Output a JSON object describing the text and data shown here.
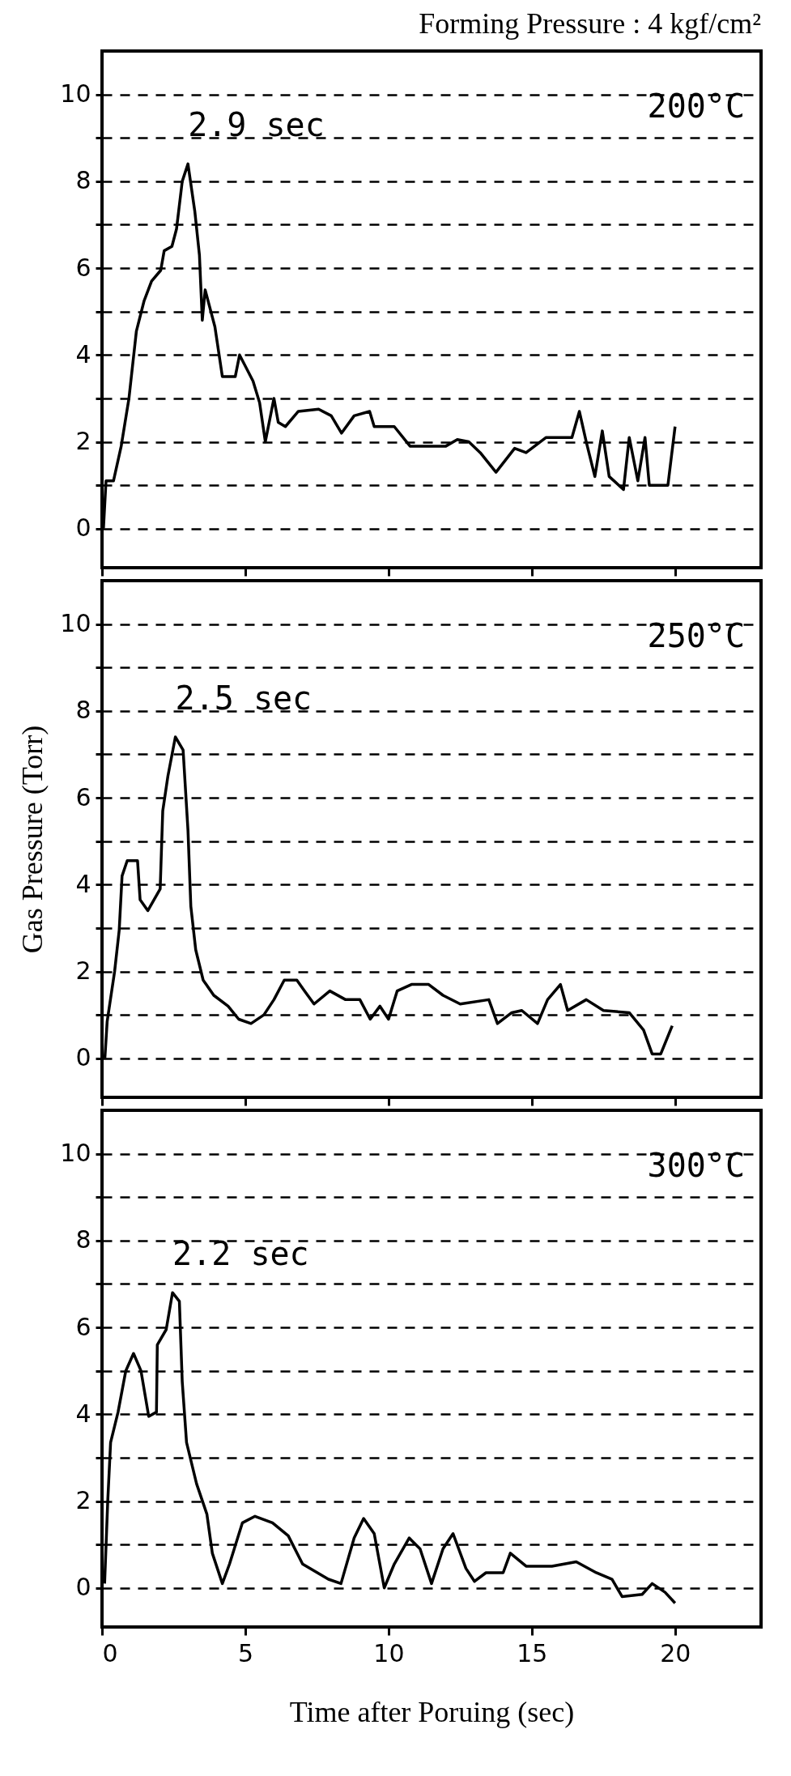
{
  "chart_data": [
    {
      "type": "line",
      "title": "Forming Pressure : 4 kgf/cm²",
      "annotations": [
        {
          "text": "2.9 sec",
          "x": 3.0,
          "y": 8.4
        },
        "200°C"
      ],
      "xlim": [
        0,
        23
      ],
      "xticks": [
        0,
        5,
        10,
        15,
        20
      ],
      "ylim": [
        -0.9,
        11
      ],
      "yticks": [
        0,
        {
          "value": 1,
          "label": null
        },
        2,
        {
          "value": 3,
          "label": null
        },
        4,
        {
          "value": 5,
          "label": null
        },
        6,
        {
          "value": 7,
          "label": null
        },
        8,
        {
          "value": 9,
          "label": null
        },
        10
      ],
      "grid": "y",
      "tick_labels": "y",
      "line_style": "solid",
      "marker": "none",
      "series": [
        {
          "color": "#000000",
          "x": [
            0.05,
            0.14,
            0.4,
            0.67,
            0.94,
            1.2,
            1.47,
            1.73,
            2.05,
            2.17,
            2.44,
            2.6,
            2.8,
            3.0,
            3.24,
            3.4,
            3.5,
            3.6,
            3.94,
            4.2,
            4.65,
            4.8,
            5.27,
            5.5,
            5.7,
            6.0,
            6.15,
            6.4,
            6.85,
            7.56,
            8.0,
            8.36,
            8.8,
            9.34,
            9.5,
            10.2,
            10.75,
            12.0,
            12.4,
            12.8,
            13.2,
            13.75,
            14.4,
            14.8,
            15.5,
            16.4,
            16.66,
            16.9,
            17.2,
            17.46,
            17.7,
            18.2,
            18.4,
            18.7,
            18.95,
            19.1,
            19.75,
            20.0
          ],
          "values": [
            0.0,
            1.1,
            1.1,
            1.9,
            3.0,
            4.55,
            5.25,
            5.7,
            5.95,
            6.4,
            6.5,
            6.9,
            8.0,
            8.4,
            7.3,
            6.3,
            4.8,
            5.5,
            4.65,
            3.5,
            3.5,
            4.0,
            3.4,
            2.9,
            2.0,
            3.0,
            2.45,
            2.35,
            2.7,
            2.75,
            2.6,
            2.2,
            2.6,
            2.7,
            2.35,
            2.35,
            1.9,
            1.9,
            2.05,
            2.0,
            1.75,
            1.3,
            1.85,
            1.75,
            2.1,
            2.1,
            2.7,
            2.0,
            1.2,
            2.25,
            1.2,
            0.9,
            2.1,
            1.1,
            2.1,
            1.0,
            1.0,
            2.35
          ]
        }
      ]
    },
    {
      "type": "line",
      "ylabel": "Gas Pressure (Torr)",
      "annotations": [
        {
          "text": "2.5 sec",
          "x": 2.56,
          "y": 7.4
        },
        "250°C"
      ],
      "xlim": [
        0,
        23
      ],
      "xticks": [
        0,
        5,
        10,
        15,
        20
      ],
      "ylim": [
        -0.9,
        11
      ],
      "yticks": [
        0,
        {
          "value": 1,
          "label": null
        },
        2,
        {
          "value": 3,
          "label": null
        },
        4,
        {
          "value": 5,
          "label": null
        },
        6,
        {
          "value": 7,
          "label": null
        },
        8,
        {
          "value": 9,
          "label": null
        },
        10
      ],
      "grid": "y",
      "tick_labels": "y",
      "line_style": "solid",
      "marker": "none",
      "series": [
        {
          "color": "#000000",
          "x": [
            0.1,
            0.18,
            0.44,
            0.6,
            0.7,
            0.88,
            1.24,
            1.33,
            1.6,
            2.03,
            2.12,
            2.3,
            2.56,
            2.83,
            3.0,
            3.1,
            3.27,
            3.53,
            3.9,
            4.4,
            4.77,
            5.2,
            5.65,
            6.0,
            6.36,
            6.8,
            7.07,
            7.4,
            7.95,
            8.5,
            9.0,
            9.36,
            9.7,
            10.0,
            10.3,
            10.8,
            11.4,
            11.9,
            12.5,
            13.5,
            13.8,
            14.3,
            14.65,
            15.2,
            15.55,
            16.0,
            16.25,
            16.9,
            17.5,
            18.4,
            18.9,
            19.2,
            19.5,
            19.9
          ],
          "values": [
            0.0,
            0.85,
            2.0,
            2.95,
            4.2,
            4.55,
            4.55,
            3.65,
            3.4,
            3.9,
            5.7,
            6.5,
            7.4,
            7.1,
            5.25,
            3.5,
            2.5,
            1.8,
            1.45,
            1.2,
            0.9,
            0.8,
            1.0,
            1.35,
            1.8,
            1.8,
            1.55,
            1.25,
            1.55,
            1.35,
            1.35,
            0.9,
            1.2,
            0.9,
            1.55,
            1.7,
            1.7,
            1.45,
            1.25,
            1.35,
            0.8,
            1.05,
            1.1,
            0.8,
            1.35,
            1.7,
            1.1,
            1.35,
            1.1,
            1.05,
            0.65,
            0.1,
            0.1,
            0.75
          ]
        }
      ]
    },
    {
      "type": "line",
      "xlabel": "Time after Poruing (sec)",
      "annotations": [
        {
          "text": "2.2 sec",
          "x": 2.46,
          "y": 6.8
        },
        "300°C"
      ],
      "xlim": [
        0,
        23
      ],
      "xticks": [
        0,
        5,
        10,
        15,
        20
      ],
      "ylim": [
        -0.9,
        11
      ],
      "yticks": [
        0,
        {
          "value": 1,
          "label": null
        },
        2,
        {
          "value": 3,
          "label": null
        },
        4,
        {
          "value": 5,
          "label": null
        },
        6,
        {
          "value": 7,
          "label": null
        },
        8,
        {
          "value": 9,
          "label": null
        },
        10
      ],
      "grid": "y",
      "line_style": "solid",
      "marker": "none",
      "series": [
        {
          "color": "#000000",
          "x": [
            0.09,
            0.2,
            0.3,
            0.56,
            0.83,
            1.1,
            1.36,
            1.63,
            1.9,
            1.93,
            2.24,
            2.46,
            2.7,
            2.8,
            2.95,
            3.3,
            3.66,
            3.85,
            4.2,
            4.45,
            4.9,
            5.34,
            5.95,
            6.5,
            7.0,
            7.9,
            8.34,
            8.8,
            9.13,
            9.5,
            9.85,
            10.2,
            10.72,
            11.1,
            11.5,
            11.9,
            12.25,
            12.7,
            13.0,
            13.4,
            14.0,
            14.25,
            14.8,
            15.7,
            16.55,
            17.25,
            17.8,
            18.15,
            18.85,
            19.2,
            19.65,
            20.0
          ],
          "values": [
            0.1,
            2.0,
            3.35,
            4.05,
            5.0,
            5.4,
            5.0,
            3.95,
            4.05,
            5.6,
            5.95,
            6.8,
            6.6,
            4.75,
            3.35,
            2.4,
            1.7,
            0.8,
            0.1,
            0.55,
            1.5,
            1.65,
            1.5,
            1.2,
            0.55,
            0.2,
            0.1,
            1.15,
            1.6,
            1.25,
            0.0,
            0.55,
            1.15,
            0.9,
            0.1,
            0.9,
            1.25,
            0.45,
            0.15,
            0.35,
            0.35,
            0.8,
            0.5,
            0.5,
            0.6,
            0.35,
            0.2,
            -0.2,
            -0.15,
            0.1,
            -0.1,
            -0.35
          ]
        }
      ]
    }
  ]
}
